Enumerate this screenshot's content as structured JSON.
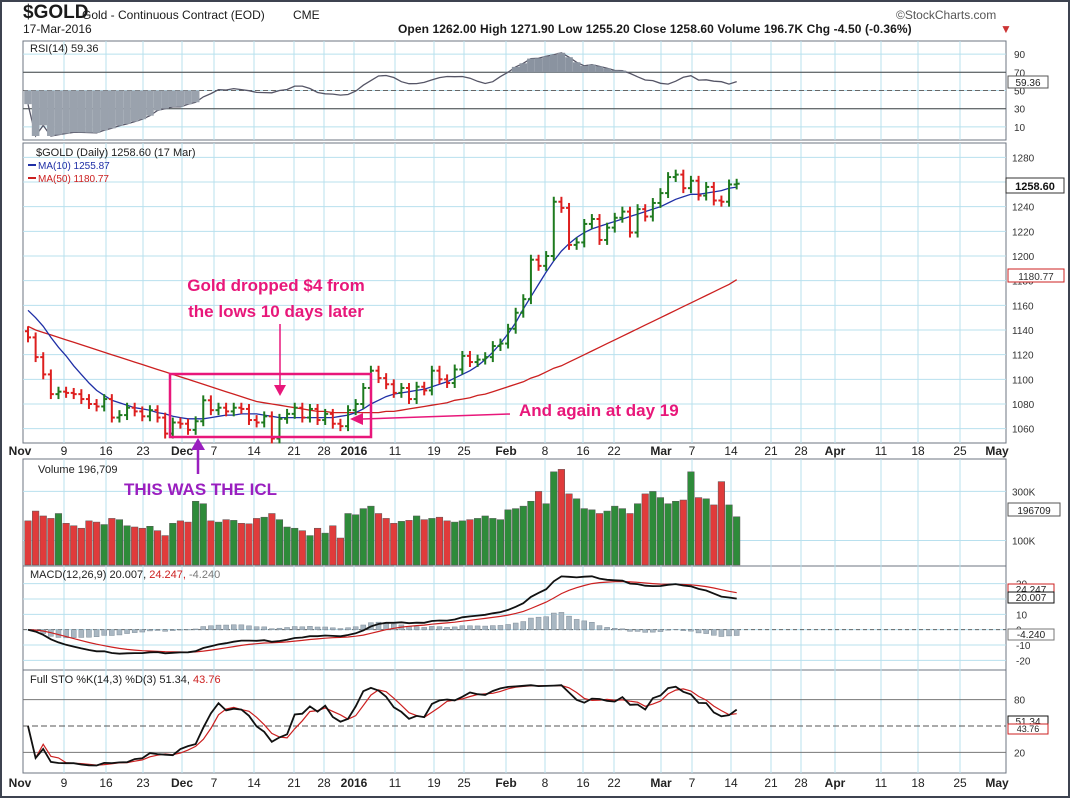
{
  "header": {
    "symbol": "$GOLD",
    "description": "Gold - Continuous Contract (EOD)",
    "exchange": "CME",
    "date": "17-Mar-2016",
    "brand": "©StockCharts.com",
    "quote": "Open 1262.00 High 1271.90 Low 1255.20 Close 1258.60 Volume 196.7K Chg -4.50 (-0.36%)",
    "chg_arrow": "▼"
  },
  "colors": {
    "panel_bg": "#ffffff",
    "grid": "#b8e0ee",
    "up_bar": "#1e7a1e",
    "down_bar": "#dd1f1f",
    "ma10": "#1f2fa6",
    "ma50": "#cc2020",
    "annotation": "#e8177a",
    "icl_text": "#9a1fbf",
    "frame": "#555a66"
  },
  "rsi_panel": {
    "label": "RSI(14) 59.36",
    "last_value_label": "59.36",
    "ticks": [
      90,
      70,
      50,
      30,
      10
    ]
  },
  "price_panel": {
    "title": "$GOLD (Daily) 1258.60 (17 Mar)",
    "ma10_label": "MA(10) 1255.87",
    "ma50_label": "MA(50) 1180.77",
    "last_price_label": "1258.60",
    "ma50_value_label": "1180.77",
    "ticks": [
      1280,
      1260,
      1240,
      1220,
      1200,
      1180,
      1160,
      1140,
      1120,
      1100,
      1080,
      1060
    ]
  },
  "volume_panel": {
    "label": "Volume 196,709",
    "last_value_label": "196709",
    "tick_labels": [
      "300K",
      "100K"
    ]
  },
  "macd_panel": {
    "label_a": "MACD(12,26,9) 20.007,",
    "label_b": "24.247,",
    "label_c": "-4.240",
    "value_labels": [
      "24.247",
      "20.007",
      "-4.240"
    ],
    "tick_labels": [
      "30",
      "20",
      "10",
      "0",
      "-10",
      "-20"
    ]
  },
  "sto_panel": {
    "label_a": "Full STO %K(14,3) %D(3) 51.34,",
    "label_b": "43.76",
    "value_labels": [
      "51.34",
      "43.76"
    ],
    "tick_labels": [
      "80",
      "20"
    ]
  },
  "x_axis_labels": [
    "Nov",
    "9",
    "16",
    "23",
    "Dec",
    "7",
    "14",
    "21",
    "28",
    "2016",
    "11",
    "19",
    "25",
    "Feb",
    "8",
    "16",
    "22",
    "Mar",
    "7",
    "14",
    "21",
    "28",
    "Apr",
    "11",
    "18",
    "25",
    "May"
  ],
  "annotations": {
    "dropped_line1": "Gold dropped $4 from",
    "dropped_line2": "the lows 10 days later",
    "again": "And again at day 19",
    "icl": "THIS WAS THE ICL"
  },
  "chart_data": {
    "type": "bar",
    "title": "$GOLD (Daily) 1258.60 (17 Mar)",
    "x": [
      "2015-11-02",
      "2015-11-03",
      "2015-11-04",
      "2015-11-05",
      "2015-11-06",
      "2015-11-09",
      "2015-11-10",
      "2015-11-11",
      "2015-11-12",
      "2015-11-13",
      "2015-11-16",
      "2015-11-17",
      "2015-11-18",
      "2015-11-19",
      "2015-11-20",
      "2015-11-23",
      "2015-11-24",
      "2015-11-25",
      "2015-11-27",
      "2015-11-30",
      "2015-12-01",
      "2015-12-02",
      "2015-12-03",
      "2015-12-04",
      "2015-12-07",
      "2015-12-08",
      "2015-12-09",
      "2015-12-10",
      "2015-12-11",
      "2015-12-14",
      "2015-12-15",
      "2015-12-16",
      "2015-12-17",
      "2015-12-18",
      "2015-12-21",
      "2015-12-22",
      "2015-12-23",
      "2015-12-24",
      "2015-12-28",
      "2015-12-29",
      "2015-12-30",
      "2015-12-31",
      "2016-01-04",
      "2016-01-05",
      "2016-01-06",
      "2016-01-07",
      "2016-01-08",
      "2016-01-11",
      "2016-01-12",
      "2016-01-13",
      "2016-01-14",
      "2016-01-15",
      "2016-01-19",
      "2016-01-20",
      "2016-01-21",
      "2016-01-22",
      "2016-01-25",
      "2016-01-26",
      "2016-01-27",
      "2016-01-28",
      "2016-01-29",
      "2016-02-01",
      "2016-02-02",
      "2016-02-03",
      "2016-02-04",
      "2016-02-05",
      "2016-02-08",
      "2016-02-09",
      "2016-02-10",
      "2016-02-11",
      "2016-02-12",
      "2016-02-16",
      "2016-02-17",
      "2016-02-18",
      "2016-02-19",
      "2016-02-22",
      "2016-02-23",
      "2016-02-24",
      "2016-02-25",
      "2016-02-26",
      "2016-02-29",
      "2016-03-01",
      "2016-03-02",
      "2016-03-03",
      "2016-03-04",
      "2016-03-07",
      "2016-03-08",
      "2016-03-09",
      "2016-03-10",
      "2016-03-11",
      "2016-03-14",
      "2016-03-15",
      "2016-03-16",
      "2016-03-17"
    ],
    "close": [
      1134,
      1118,
      1104,
      1088,
      1090,
      1089,
      1088,
      1084,
      1080,
      1078,
      1084,
      1069,
      1071,
      1077,
      1074,
      1070,
      1075,
      1069,
      1056,
      1065,
      1064,
      1059,
      1066,
      1083,
      1075,
      1077,
      1074,
      1077,
      1076,
      1067,
      1065,
      1070,
      1052,
      1068,
      1072,
      1077,
      1069,
      1076,
      1067,
      1072,
      1064,
      1062,
      1075,
      1080,
      1093,
      1107,
      1101,
      1096,
      1089,
      1093,
      1084,
      1094,
      1091,
      1107,
      1100,
      1097,
      1108,
      1119,
      1114,
      1116,
      1118,
      1127,
      1129,
      1141,
      1154,
      1165,
      1197,
      1192,
      1200,
      1244,
      1239,
      1209,
      1211,
      1226,
      1230,
      1213,
      1223,
      1231,
      1236,
      1219,
      1238,
      1232,
      1243,
      1251,
      1264,
      1266,
      1255,
      1261,
      1249,
      1256,
      1245,
      1244,
      1258,
      1258.6
    ],
    "ma10": [
      1156.0,
      1150.0,
      1143.0,
      1134.0,
      1126.0,
      1119.0,
      1111.0,
      1104.0,
      1097.0,
      1091.0,
      1087.0,
      1083.0,
      1081.0,
      1079.0,
      1077.0,
      1076.0,
      1075.0,
      1073.0,
      1072.0,
      1070.0,
      1069.0,
      1068.0,
      1068.0,
      1068.0,
      1069.0,
      1070.0,
      1071.0,
      1071.0,
      1072.0,
      1072.0,
      1072.0,
      1071.0,
      1070.0,
      1069.0,
      1069.0,
      1069.0,
      1069.0,
      1069.0,
      1069.0,
      1069.0,
      1069.0,
      1070.0,
      1071.0,
      1073.0,
      1076.0,
      1080.0,
      1083.0,
      1086.0,
      1088.0,
      1089.0,
      1090.0,
      1091.0,
      1092.0,
      1094.0,
      1096.0,
      1098.0,
      1101.0,
      1104.0,
      1107.0,
      1111.0,
      1116.0,
      1122.0,
      1129.0,
      1137.0,
      1146.0,
      1157.0,
      1167.0,
      1177.0,
      1187.0,
      1196.0,
      1204.0,
      1210.0,
      1215.0,
      1219.0,
      1222.0,
      1224.0,
      1226.0,
      1228.0,
      1230.0,
      1232.0,
      1234.0,
      1236.0,
      1238.0,
      1240.0,
      1243.0,
      1246.0,
      1248.0,
      1250.0,
      1250.0,
      1251.0,
      1252.0,
      1253.0,
      1255.0,
      1255.87
    ],
    "ma50": [
      1143.0,
      1140.0,
      1138.0,
      1136.0,
      1134.0,
      1132.0,
      1130.0,
      1128.0,
      1126.0,
      1124.0,
      1122.0,
      1120.0,
      1118.0,
      1116.0,
      1114.0,
      1112.0,
      1110.0,
      1108.0,
      1106.0,
      1104.0,
      1102.0,
      1100.0,
      1098.0,
      1096.0,
      1094.0,
      1092.0,
      1090.0,
      1088.0,
      1086.0,
      1084.0,
      1082.0,
      1081.0,
      1080.0,
      1079.0,
      1078.0,
      1077.0,
      1076.0,
      1075.0,
      1074.0,
      1074.0,
      1073.0,
      1073.0,
      1073.0,
      1073.0,
      1073.0,
      1073.0,
      1073.0,
      1074.0,
      1074.0,
      1075.0,
      1076.0,
      1077.0,
      1078.0,
      1079.0,
      1080.0,
      1081.0,
      1083.0,
      1084.0,
      1085.0,
      1087.0,
      1088.0,
      1090.0,
      1092.0,
      1094.0,
      1096.0,
      1098.0,
      1101.0,
      1103.0,
      1106.0,
      1109.0,
      1111.0,
      1114.0,
      1117.0,
      1120.0,
      1123.0,
      1126.0,
      1129.0,
      1132.0,
      1135.0,
      1138.0,
      1141.0,
      1144.0,
      1147.0,
      1150.0,
      1153.0,
      1156.0,
      1159.0,
      1162.0,
      1165.0,
      1168.0,
      1171.0,
      1174.0,
      1177.0,
      1180.77
    ],
    "volume": [
      180000,
      220000,
      200000,
      190000,
      210000,
      170000,
      160000,
      150000,
      180000,
      175000,
      165000,
      190000,
      185000,
      160000,
      155000,
      150000,
      158000,
      140000,
      120000,
      170000,
      180000,
      175000,
      260000,
      250000,
      180000,
      175000,
      185000,
      182000,
      170000,
      168000,
      190000,
      195000,
      210000,
      185000,
      155000,
      150000,
      140000,
      120000,
      150000,
      130000,
      160000,
      110000,
      210000,
      205000,
      230000,
      240000,
      210000,
      190000,
      170000,
      178000,
      182000,
      200000,
      185000,
      190000,
      195000,
      180000,
      175000,
      180000,
      185000,
      190000,
      200000,
      190000,
      185000,
      225000,
      230000,
      240000,
      260000,
      300000,
      250000,
      380000,
      390000,
      290000,
      270000,
      230000,
      225000,
      210000,
      220000,
      240000,
      230000,
      210000,
      250000,
      290000,
      300000,
      275000,
      250000,
      260000,
      265000,
      380000,
      275000,
      270000,
      245000,
      340000,
      245000,
      196709
    ],
    "ylim": [
      1050,
      1290
    ]
  }
}
